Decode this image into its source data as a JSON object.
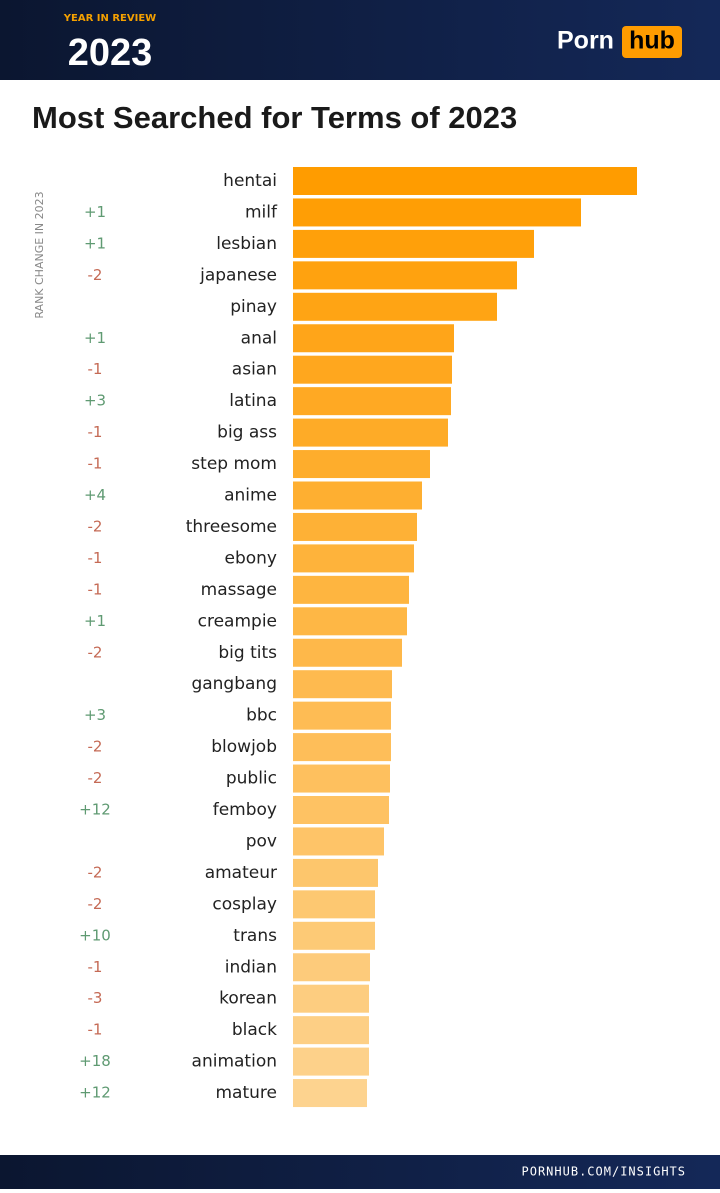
{
  "header": {
    "badge": "YEAR IN REVIEW",
    "year": "2023",
    "logo_left": "Porn",
    "logo_right": "hub"
  },
  "chart_data": {
    "type": "bar",
    "orientation": "horizontal",
    "title": "Most Searched for Terms of 2023",
    "side_label": "RANK CHANGE IN 2023",
    "categories": [
      "hentai",
      "milf",
      "lesbian",
      "japanese",
      "pinay",
      "anal",
      "asian",
      "latina",
      "big ass",
      "step mom",
      "anime",
      "threesome",
      "ebony",
      "massage",
      "creampie",
      "big tits",
      "gangbang",
      "bbc",
      "blowjob",
      "public",
      "femboy",
      "pov",
      "amateur",
      "cosplay",
      "trans",
      "indian",
      "korean",
      "black",
      "animation",
      "mature"
    ],
    "values": [
      344,
      288,
      241,
      224,
      204,
      161,
      159,
      158,
      155,
      137,
      129,
      124,
      121,
      116,
      114,
      109,
      99,
      98,
      98,
      97,
      96,
      91,
      85,
      82,
      82,
      77,
      76,
      76,
      76,
      74
    ],
    "rank_changes": [
      null,
      "+1",
      "+1",
      "-2",
      null,
      "+1",
      "-1",
      "+3",
      "-1",
      "-1",
      "+4",
      "-2",
      "-1",
      "-1",
      "+1",
      "-2",
      null,
      "+3",
      "-2",
      "-2",
      "+12",
      null,
      "-2",
      "-2",
      "+10",
      "-1",
      "-3",
      "-1",
      "+18",
      "+12"
    ],
    "xlim": [
      0,
      344
    ],
    "color_start": "#ff9c00",
    "color_end": "#fdd38f",
    "up_color": "#5f9a72",
    "down_color": "#c56a55"
  },
  "footer": {
    "text": "PORNHUB.COM/INSIGHTS"
  }
}
